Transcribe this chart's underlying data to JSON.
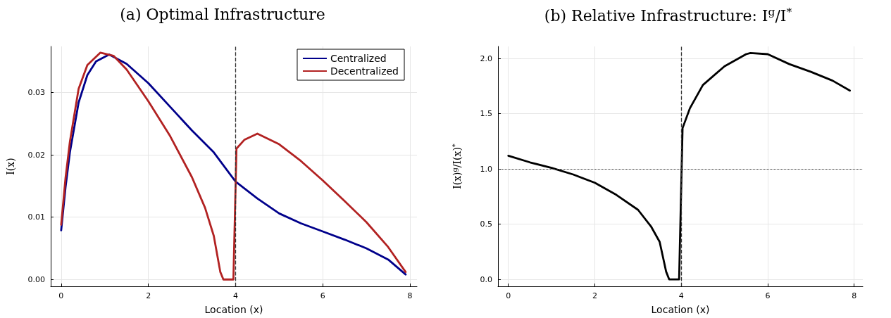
{
  "chart_data": [
    {
      "type": "line",
      "title": "(a) Optimal Infrastructure",
      "xlabel": "Location (x)",
      "ylabel": "I(x)",
      "xlim": [
        -0.24,
        8.16
      ],
      "ylim": [
        -0.0011,
        0.0374
      ],
      "xticks": [
        0,
        2,
        4,
        6,
        8
      ],
      "yticks": [
        {
          "value": 0,
          "label": "0.00"
        },
        0.01,
        0.02,
        0.03
      ],
      "grid": true,
      "legend": "top right",
      "marker": "none",
      "line_style": "solid",
      "ref_lines": [
        {
          "axis": "x",
          "value": 4,
          "color": "#333333",
          "line_style": "dashed"
        }
      ],
      "series": [
        {
          "name": "Centralized",
          "color": "#00008b",
          "x": [
            0,
            0.1,
            0.2,
            0.4,
            0.6,
            0.8,
            1.1,
            1.5,
            2,
            2.5,
            3,
            3.5,
            4,
            4.5,
            5,
            5.5,
            6,
            6.5,
            7,
            7.5,
            7.9
          ],
          "values": [
            0.0079,
            0.0148,
            0.0204,
            0.0284,
            0.0328,
            0.035,
            0.0361,
            0.0346,
            0.0315,
            0.0277,
            0.0239,
            0.0204,
            0.0157,
            0.013,
            0.0106,
            0.009,
            0.0077,
            0.0064,
            0.005,
            0.0032,
            0.0008
          ]
        },
        {
          "name": "Decentralized",
          "color": "#b22222",
          "x": [
            0,
            0.1,
            0.2,
            0.4,
            0.6,
            0.9,
            1.2,
            1.5,
            2,
            2.5,
            3,
            3.3,
            3.5,
            3.65,
            3.72,
            3.95,
            4.02,
            4.2,
            4.5,
            5,
            5.5,
            6,
            6.5,
            7,
            7.5,
            7.9
          ],
          "values": [
            0.0088,
            0.0163,
            0.0221,
            0.0306,
            0.0344,
            0.0364,
            0.0359,
            0.0337,
            0.0286,
            0.023,
            0.0164,
            0.0115,
            0.007,
            0.0012,
            0,
            0,
            0.021,
            0.0224,
            0.0234,
            0.0217,
            0.019,
            0.0159,
            0.0126,
            0.0092,
            0.0052,
            0.0012
          ]
        }
      ]
    },
    {
      "type": "line",
      "title": "(b) Relative Infrastructure: I$^{g}$/I$^{*}$",
      "xlabel": "Location (x)",
      "ylabel": "I(x)$^{g}$/I(x)$^{*}$",
      "xlim": [
        -0.24,
        8.2
      ],
      "ylim": [
        -0.063,
        2.11
      ],
      "xticks": [
        0,
        2,
        4,
        6,
        8
      ],
      "yticks": [
        {
          "value": 0,
          "label": "0.0"
        },
        0.5,
        {
          "value": 1,
          "label": "1.0"
        },
        1.5,
        {
          "value": 2,
          "label": "2.0"
        }
      ],
      "grid": true,
      "marker": "none",
      "line_style": "solid",
      "ref_lines": [
        {
          "axis": "x",
          "value": 4,
          "color": "#333333",
          "line_style": "dashed"
        },
        {
          "axis": "y",
          "value": 1,
          "color": "#333333",
          "line_style": "dotted"
        }
      ],
      "series": [
        {
          "color": "#000000",
          "x": [
            0,
            0.5,
            1,
            1.5,
            2,
            2.5,
            3,
            3.3,
            3.5,
            3.65,
            3.72,
            3.95,
            4.03,
            4.2,
            4.5,
            5,
            5.5,
            5.6,
            6,
            6.5,
            7,
            7.5,
            7.9
          ],
          "values": [
            1.12,
            1.06,
            1.01,
            0.95,
            0.875,
            0.765,
            0.63,
            0.48,
            0.34,
            0.07,
            0,
            0,
            1.37,
            1.55,
            1.76,
            1.93,
            2.04,
            2.05,
            2.04,
            1.95,
            1.88,
            1.8,
            1.71
          ]
        }
      ]
    }
  ]
}
